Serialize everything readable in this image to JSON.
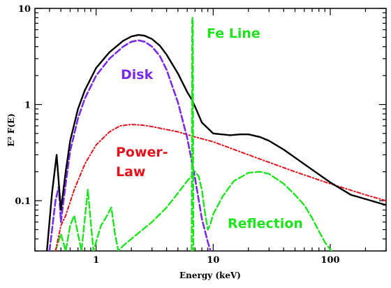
{
  "chart_data": {
    "type": "line",
    "title": "",
    "xlabel": "Energy (keV)",
    "ylabel": "E² F(E)",
    "xscale": "log",
    "yscale": "log",
    "xlim": [
      0.3,
      300
    ],
    "ylim": [
      0.03,
      10
    ],
    "x_ticks": [
      1,
      10,
      100
    ],
    "x_tick_labels": [
      "1",
      "10",
      "100"
    ],
    "y_ticks": [
      0.1,
      1,
      10
    ],
    "y_tick_labels": [
      "0.1",
      "1",
      "10"
    ],
    "grid": false,
    "legend": "none",
    "colors": {
      "total": "#000000",
      "disk": "#7b2be6",
      "power_law": "#e3121c",
      "fe_line": "#1ee31e",
      "reflection": "#1ee31e"
    },
    "annotations": [
      {
        "text": "Fe Line",
        "series": "fe_line"
      },
      {
        "text": "Disk",
        "series": "disk"
      },
      {
        "text": "Power-",
        "series": "power_law"
      },
      {
        "text": "Law",
        "series": "power_law"
      },
      {
        "text": "Reflection",
        "series": "reflection"
      }
    ],
    "series": [
      {
        "key": "total",
        "style": "solid",
        "x": [
          0.38,
          0.42,
          0.46,
          0.5,
          0.55,
          0.6,
          0.7,
          0.8,
          1.0,
          1.3,
          1.7,
          2.0,
          2.3,
          2.6,
          3.0,
          3.5,
          4.0,
          5.0,
          6.0,
          6.5,
          7.0,
          8.0,
          10.0,
          14.0,
          17.0,
          20.0,
          25.0,
          30.0,
          40.0,
          60.0,
          100.0,
          150.0,
          300.0
        ],
        "y": [
          0.03,
          0.12,
          0.3,
          0.08,
          0.2,
          0.42,
          0.9,
          1.4,
          2.4,
          3.5,
          4.6,
          5.1,
          5.3,
          5.2,
          4.8,
          4.1,
          3.3,
          2.1,
          1.35,
          1.15,
          0.95,
          0.65,
          0.5,
          0.48,
          0.49,
          0.49,
          0.46,
          0.42,
          0.34,
          0.24,
          0.155,
          0.115,
          0.09
        ]
      },
      {
        "key": "disk",
        "style": "dashed",
        "x": [
          0.4,
          0.45,
          0.48,
          0.5,
          0.55,
          0.6,
          0.7,
          0.8,
          1.0,
          1.3,
          1.7,
          2.0,
          2.3,
          2.6,
          3.0,
          3.5,
          4.0,
          5.0,
          6.0,
          7.0,
          8.0,
          9.0,
          9.5
        ],
        "y": [
          0.03,
          0.1,
          0.14,
          0.06,
          0.15,
          0.33,
          0.72,
          1.15,
          2.0,
          3.0,
          4.0,
          4.5,
          4.65,
          4.5,
          4.0,
          3.2,
          2.3,
          1.05,
          0.45,
          0.17,
          0.065,
          0.037,
          0.03
        ]
      },
      {
        "key": "power_law",
        "style": "dash-dot",
        "x": [
          0.45,
          0.5,
          0.55,
          0.65,
          0.8,
          1.0,
          1.3,
          1.6,
          2.0,
          2.5,
          3.0,
          5.0,
          7.0,
          10.0,
          20.0,
          50.0,
          100.0,
          200.0,
          300.0
        ],
        "y": [
          0.03,
          0.055,
          0.07,
          0.13,
          0.24,
          0.38,
          0.52,
          0.6,
          0.62,
          0.61,
          0.59,
          0.52,
          0.46,
          0.41,
          0.3,
          0.2,
          0.15,
          0.115,
          0.1
        ]
      },
      {
        "key": "fe_line",
        "style": "dashed",
        "x": [
          6.55,
          6.58,
          6.62,
          6.66,
          6.7,
          6.74,
          6.78
        ],
        "y": [
          0.03,
          0.5,
          7.5,
          8.0,
          7.5,
          0.5,
          0.03
        ]
      },
      {
        "key": "reflection",
        "style": "dashed",
        "x": [
          0.45,
          0.5,
          0.55,
          0.6,
          0.65,
          0.7,
          0.75,
          0.85,
          0.9,
          0.95,
          1.1,
          1.2,
          1.35,
          1.45,
          1.55,
          1.7,
          2.0,
          3.0,
          4.0,
          5.0,
          6.0,
          7.0,
          7.5,
          8.0,
          8.5,
          9.0,
          9.5,
          10.0,
          12.0,
          15.0,
          20.0,
          25.0,
          30.0,
          40.0,
          50.0,
          60.0,
          70.0,
          80.0,
          90.0,
          100.0,
          110.0
        ],
        "y": [
          0.03,
          0.045,
          0.03,
          0.055,
          0.07,
          0.045,
          0.03,
          0.13,
          0.06,
          0.03,
          0.055,
          0.065,
          0.085,
          0.045,
          0.03,
          0.034,
          0.04,
          0.06,
          0.085,
          0.12,
          0.16,
          0.2,
          0.18,
          0.13,
          0.075,
          0.05,
          0.058,
          0.072,
          0.11,
          0.16,
          0.195,
          0.2,
          0.19,
          0.15,
          0.115,
          0.09,
          0.066,
          0.048,
          0.037,
          0.031,
          0.027
        ]
      }
    ]
  }
}
